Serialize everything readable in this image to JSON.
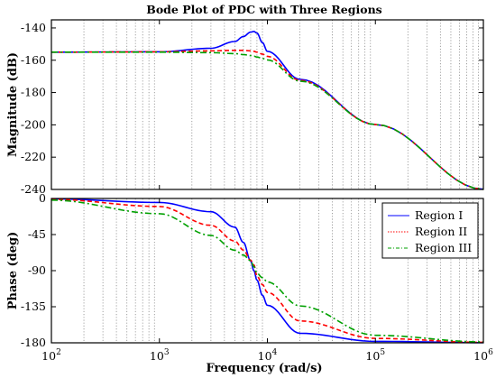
{
  "chart_data": [
    {
      "type": "line",
      "title": "Bode Plot of PDC with Three Regions",
      "ylabel": "Magnitude (dB)",
      "xscale": "log",
      "xlim": [
        100,
        1000000
      ],
      "ylim": [
        -240,
        -135
      ],
      "yticks": [
        -140,
        -160,
        -180,
        -200,
        -220,
        -240
      ],
      "grid": "x-minor dotted",
      "x": [
        100,
        1000,
        3000,
        5000,
        6000,
        7000,
        7500,
        8000,
        9000,
        10000,
        20000,
        100000,
        1000000
      ],
      "series": [
        {
          "name": "Region I",
          "color": "#0000ff",
          "style": "solid",
          "values": [
            -155,
            -154.8,
            -152.6,
            -148.4,
            -145.3,
            -142.6,
            -142.2,
            -143.2,
            -149.1,
            -154.5,
            -171.8,
            -199.8,
            -239.9
          ]
        },
        {
          "name": "Region II",
          "color": "#ff0000",
          "style": "dashed",
          "values": [
            -155,
            -154.8,
            -154.2,
            -153.9,
            -153.9,
            -154.2,
            -154.5,
            -155,
            -156.2,
            -157.6,
            -172.4,
            -199.8,
            -239.9
          ]
        },
        {
          "name": "Region III",
          "color": "#00a000",
          "style": "dashdot",
          "values": [
            -155,
            -155,
            -155.3,
            -155.9,
            -156.5,
            -157.1,
            -157.5,
            -158,
            -158.9,
            -159.8,
            -172.9,
            -199.8,
            -239.9
          ]
        }
      ]
    },
    {
      "type": "line",
      "xlabel": "Frequency  (rad/s)",
      "ylabel": "Phase (deg)",
      "xscale": "log",
      "xlim": [
        100,
        1000000
      ],
      "xticks": [
        "10^2",
        "10^3",
        "10^4",
        "10^5",
        "10^6"
      ],
      "ylim": [
        -180,
        0
      ],
      "yticks": [
        0,
        -45,
        -90,
        -135,
        -180
      ],
      "legend": {
        "position": "top-right",
        "entries": [
          "Region I",
          "Region II",
          "Region III"
        ]
      },
      "x": [
        100,
        1000,
        3000,
        5000,
        6000,
        7000,
        7500,
        8000,
        9000,
        10000,
        20000,
        100000,
        1000000
      ],
      "series": [
        {
          "name": "Region I",
          "color": "#0000ff",
          "style": "solid",
          "values": [
            -0.5,
            -5,
            -16.5,
            -35.8,
            -54.8,
            -77.8,
            -90,
            -101.7,
            -120.8,
            -133.2,
            -168.1,
            -178.2,
            -179.8
          ]
        },
        {
          "name": "Region II",
          "color": "#ff0000",
          "style": "dashed",
          "values": [
            -1,
            -10,
            -33.5,
            -53.1,
            -64.3,
            -77.1,
            -83,
            -96.5,
            -107.4,
            -117.1,
            -152.7,
            -174.5,
            -179.4
          ]
        },
        {
          "name": "Region III",
          "color": "#00a000",
          "style": "dashdot",
          "values": [
            -2,
            -19,
            -46.1,
            -64.5,
            -70.7,
            -77.6,
            -85,
            -93.2,
            -98.8,
            -104.1,
            -134,
            -170.6,
            -178.9
          ]
        }
      ]
    }
  ]
}
